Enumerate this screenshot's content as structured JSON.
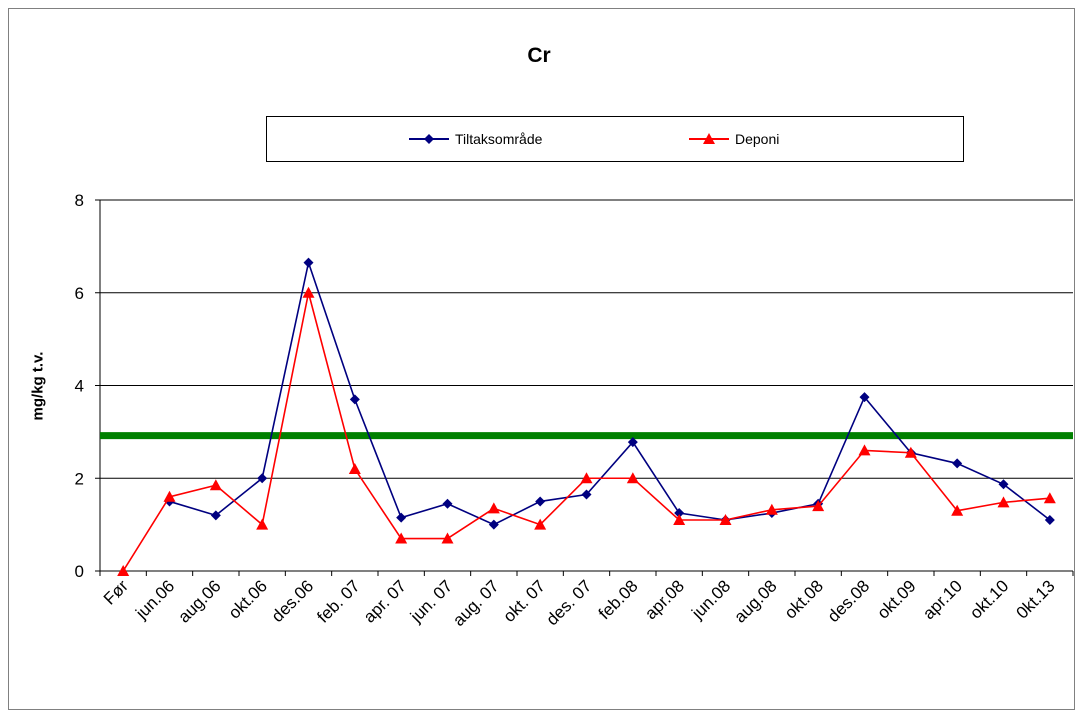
{
  "chart_data": {
    "type": "line",
    "title": "Cr",
    "xlabel": "",
    "ylabel": "mg/kg t.v.",
    "ylim": [
      0,
      8
    ],
    "yticks": [
      0,
      2,
      4,
      6,
      8
    ],
    "grid": true,
    "legend_position": "top",
    "categories": [
      "Før",
      "jun.06",
      "aug.06",
      "okt.06",
      "des.06",
      "feb. 07",
      "apr. 07",
      "jun. 07",
      "aug. 07",
      "okt. 07",
      "des. 07",
      "feb.08",
      "apr.08",
      "jun.08",
      "aug.08",
      "okt.08",
      "des.08",
      "okt.09",
      "apr.10",
      "okt.10",
      "0kt.13"
    ],
    "series": [
      {
        "name": "Tiltaksområde",
        "color": "#000080",
        "marker": "diamond",
        "values": [
          null,
          1.5,
          1.2,
          2.0,
          6.65,
          3.7,
          1.15,
          1.45,
          1.0,
          1.5,
          1.65,
          2.78,
          1.25,
          1.1,
          1.25,
          1.45,
          3.75,
          2.55,
          2.32,
          1.87,
          1.1
        ]
      },
      {
        "name": "Deponi",
        "color": "#ff0000",
        "marker": "triangle",
        "values": [
          0,
          1.6,
          1.85,
          1.0,
          6.0,
          2.2,
          0.7,
          0.7,
          1.35,
          1.0,
          2.0,
          2.0,
          1.1,
          1.1,
          1.32,
          1.4,
          2.6,
          2.55,
          1.3,
          1.48,
          1.57
        ]
      }
    ],
    "reference_line": {
      "value": 2.92,
      "color": "#008000"
    }
  }
}
